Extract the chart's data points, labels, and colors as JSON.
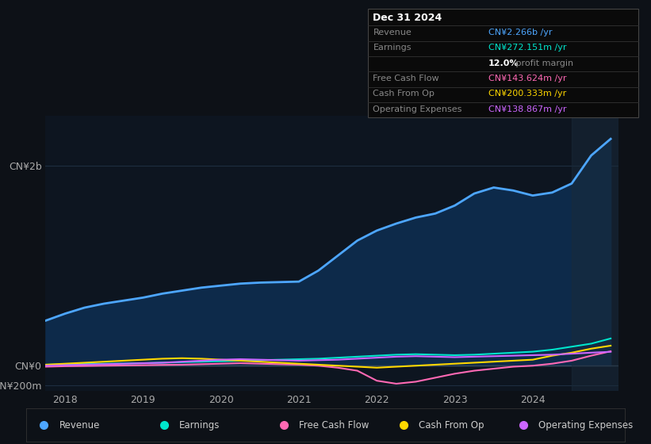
{
  "bg_color": "#0d1117",
  "plot_bg_color": "#0d1520",
  "grid_color": "#1e2d40",
  "ylim": [
    -250000000.0,
    2500000000.0
  ],
  "yticks": [
    -200000000.0,
    0,
    2000000000.0
  ],
  "ytick_labels": [
    "-CN¥200m",
    "CN¥0",
    "CN¥2b"
  ],
  "xticks": [
    2018,
    2019,
    2020,
    2021,
    2022,
    2023,
    2024
  ],
  "legend": [
    {
      "label": "Revenue",
      "color": "#4da6ff"
    },
    {
      "label": "Earnings",
      "color": "#00e5cc"
    },
    {
      "label": "Free Cash Flow",
      "color": "#ff69b4"
    },
    {
      "label": "Cash From Op",
      "color": "#ffd700"
    },
    {
      "label": "Operating Expenses",
      "color": "#cc66ff"
    }
  ],
  "revenue": {
    "x": [
      2017.75,
      2018.0,
      2018.25,
      2018.5,
      2018.75,
      2019.0,
      2019.25,
      2019.5,
      2019.75,
      2020.0,
      2020.25,
      2020.5,
      2020.75,
      2021.0,
      2021.25,
      2021.5,
      2021.75,
      2022.0,
      2022.25,
      2022.5,
      2022.75,
      2023.0,
      2023.25,
      2023.5,
      2023.75,
      2024.0,
      2024.25,
      2024.5,
      2024.75,
      2025.0
    ],
    "y": [
      450000000.0,
      520000000.0,
      580000000.0,
      620000000.0,
      650000000.0,
      680000000.0,
      720000000.0,
      750000000.0,
      780000000.0,
      800000000.0,
      820000000.0,
      830000000.0,
      835000000.0,
      840000000.0,
      950000000.0,
      1100000000.0,
      1250000000.0,
      1350000000.0,
      1420000000.0,
      1480000000.0,
      1520000000.0,
      1600000000.0,
      1720000000.0,
      1780000000.0,
      1750000000.0,
      1700000000.0,
      1730000000.0,
      1820000000.0,
      2100000000.0,
      2266000000.0
    ],
    "color": "#4da6ff",
    "fill_color": "#0d2a4a",
    "linewidth": 2
  },
  "earnings": {
    "x": [
      2017.75,
      2018.0,
      2018.25,
      2018.5,
      2018.75,
      2019.0,
      2019.25,
      2019.5,
      2019.75,
      2020.0,
      2020.25,
      2020.5,
      2020.75,
      2021.0,
      2021.25,
      2021.5,
      2021.75,
      2022.0,
      2022.25,
      2022.5,
      2022.75,
      2023.0,
      2023.25,
      2023.5,
      2023.75,
      2024.0,
      2024.25,
      2024.5,
      2024.75,
      2025.0
    ],
    "y": [
      10000000.0,
      15000000.0,
      18000000.0,
      20000000.0,
      22000000.0,
      25000000.0,
      30000000.0,
      35000000.0,
      40000000.0,
      45000000.0,
      50000000.0,
      55000000.0,
      60000000.0,
      65000000.0,
      70000000.0,
      80000000.0,
      90000000.0,
      100000000.0,
      110000000.0,
      115000000.0,
      110000000.0,
      105000000.0,
      110000000.0,
      120000000.0,
      130000000.0,
      140000000.0,
      160000000.0,
      190000000.0,
      220000000.0,
      272000000.0
    ],
    "color": "#00e5cc",
    "linewidth": 1.5
  },
  "free_cash_flow": {
    "x": [
      2017.75,
      2018.0,
      2018.25,
      2018.5,
      2018.75,
      2019.0,
      2019.25,
      2019.5,
      2019.75,
      2020.0,
      2020.25,
      2020.5,
      2020.75,
      2021.0,
      2021.25,
      2021.5,
      2021.75,
      2022.0,
      2022.25,
      2022.5,
      2022.75,
      2023.0,
      2023.25,
      2023.5,
      2023.75,
      2024.0,
      2024.25,
      2024.5,
      2024.75,
      2025.0
    ],
    "y": [
      -10000000.0,
      -5000000.0,
      -3000000.0,
      0,
      2000000.0,
      5000000.0,
      8000000.0,
      10000000.0,
      15000000.0,
      20000000.0,
      25000000.0,
      20000000.0,
      15000000.0,
      10000000.0,
      0,
      -20000000.0,
      -50000000.0,
      -150000000.0,
      -180000000.0,
      -160000000.0,
      -120000000.0,
      -80000000.0,
      -50000000.0,
      -30000000.0,
      -10000000.0,
      0,
      20000000.0,
      50000000.0,
      100000000.0,
      144000000.0
    ],
    "color": "#ff69b4",
    "linewidth": 1.5
  },
  "cash_from_op": {
    "x": [
      2017.75,
      2018.0,
      2018.25,
      2018.5,
      2018.75,
      2019.0,
      2019.25,
      2019.5,
      2019.75,
      2020.0,
      2020.25,
      2020.5,
      2020.75,
      2021.0,
      2021.25,
      2021.5,
      2021.75,
      2022.0,
      2022.25,
      2022.5,
      2022.75,
      2023.0,
      2023.25,
      2023.5,
      2023.75,
      2024.0,
      2024.25,
      2024.5,
      2024.75,
      2025.0
    ],
    "y": [
      10000000.0,
      20000000.0,
      30000000.0,
      40000000.0,
      50000000.0,
      60000000.0,
      70000000.0,
      75000000.0,
      70000000.0,
      60000000.0,
      50000000.0,
      40000000.0,
      30000000.0,
      20000000.0,
      10000000.0,
      0,
      -10000000.0,
      -20000000.0,
      -10000000.0,
      0,
      10000000.0,
      20000000.0,
      30000000.0,
      40000000.0,
      50000000.0,
      60000000.0,
      100000000.0,
      130000000.0,
      170000000.0,
      200000000.0
    ],
    "color": "#ffd700",
    "linewidth": 1.5
  },
  "operating_expenses": {
    "x": [
      2017.75,
      2018.0,
      2018.25,
      2018.5,
      2018.75,
      2019.0,
      2019.25,
      2019.5,
      2019.75,
      2020.0,
      2020.25,
      2020.5,
      2020.75,
      2021.0,
      2021.25,
      2021.5,
      2021.75,
      2022.0,
      2022.25,
      2022.5,
      2022.75,
      2023.0,
      2023.25,
      2023.5,
      2023.75,
      2024.0,
      2024.25,
      2024.5,
      2024.75,
      2025.0
    ],
    "y": [
      0,
      5000000.0,
      10000000.0,
      15000000.0,
      20000000.0,
      25000000.0,
      30000000.0,
      40000000.0,
      50000000.0,
      60000000.0,
      65000000.0,
      60000000.0,
      55000000.0,
      50000000.0,
      55000000.0,
      60000000.0,
      70000000.0,
      80000000.0,
      90000000.0,
      95000000.0,
      90000000.0,
      85000000.0,
      90000000.0,
      95000000.0,
      100000000.0,
      105000000.0,
      110000000.0,
      120000000.0,
      130000000.0,
      139000000.0
    ],
    "color": "#cc66ff",
    "linewidth": 1.5
  }
}
